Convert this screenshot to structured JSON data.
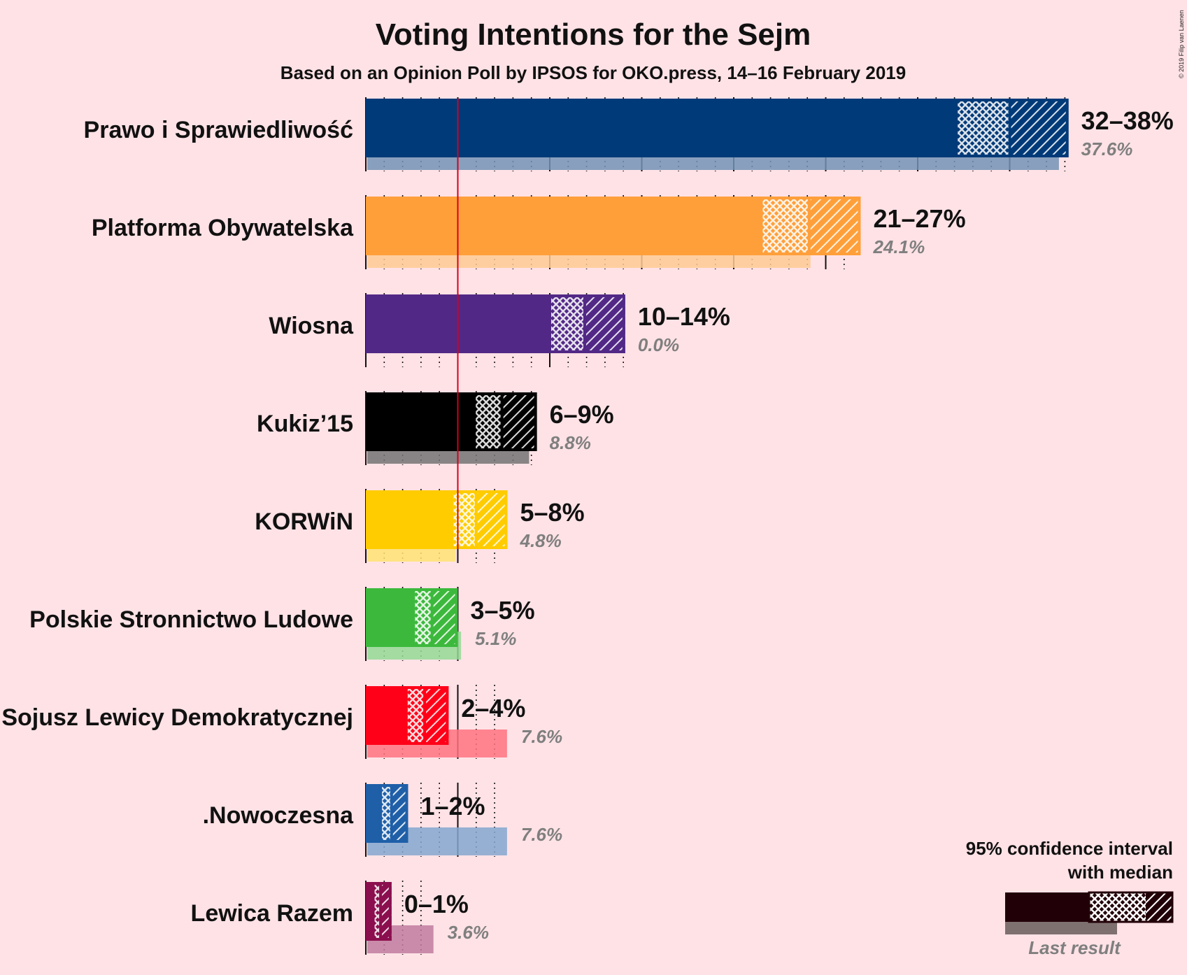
{
  "title": "Voting Intentions for the Sejm",
  "subtitle": "Based on an Opinion Poll by IPSOS for OKO.press, 14–16 February 2019",
  "copyright": "© 2019 Filip van Laenen",
  "legend": {
    "ci_label_line1": "95% confidence interval",
    "ci_label_line2": "with median",
    "last_result_label": "Last result"
  },
  "chart_data": {
    "type": "bar",
    "orientation": "horizontal",
    "xlim": [
      0,
      38
    ],
    "threshold": 5,
    "grid": true,
    "series": [
      {
        "name": "Prawo i Sprawiedliwość",
        "ci_low": 32.1,
        "median": 35.0,
        "ci_high": 38.2,
        "range_label": "32–38%",
        "last": 37.6,
        "last_label": "37.6%",
        "color": "#003a78"
      },
      {
        "name": "Platforma Obywatelska",
        "ci_low": 21.5,
        "median": 24.1,
        "ci_high": 26.9,
        "range_label": "21–27%",
        "last": 24.1,
        "last_label": "24.1%",
        "color": "#ff9f3a"
      },
      {
        "name": "Wiosna",
        "ci_low": 10.0,
        "median": 11.9,
        "ci_high": 14.1,
        "range_label": "10–14%",
        "last": 0.0,
        "last_label": "0.0%",
        "color": "#522886"
      },
      {
        "name": "Kukiz’15",
        "ci_low": 5.9,
        "median": 7.4,
        "ci_high": 9.3,
        "range_label": "6–9%",
        "last": 8.8,
        "last_label": "8.8%",
        "color": "#000000"
      },
      {
        "name": "KORWiN",
        "ci_low": 4.7,
        "median": 6.0,
        "ci_high": 7.7,
        "range_label": "5–8%",
        "last": 4.8,
        "last_label": "4.8%",
        "color": "#ffcc00"
      },
      {
        "name": "Polskie Stronnictwo Ludowe",
        "ci_low": 2.6,
        "median": 3.6,
        "ci_high": 5.0,
        "range_label": "3–5%",
        "last": 5.1,
        "last_label": "5.1%",
        "color": "#3cb93c"
      },
      {
        "name": "Sojusz Lewicy Demokratycznej",
        "ci_low": 2.2,
        "median": 3.2,
        "ci_high": 4.5,
        "range_label": "2–4%",
        "last": 7.6,
        "last_label": "7.6%",
        "color": "#ff0018"
      },
      {
        "name": ".Nowoczesna",
        "ci_low": 0.8,
        "median": 1.4,
        "ci_high": 2.3,
        "range_label": "1–2%",
        "last": 7.6,
        "last_label": "7.6%",
        "color": "#1f5fa8"
      },
      {
        "name": "Lewica Razem",
        "ci_low": 0.4,
        "median": 0.8,
        "ci_high": 1.4,
        "range_label": "0–1%",
        "last": 3.6,
        "last_label": "3.6%",
        "color": "#8b0f4f"
      }
    ]
  }
}
